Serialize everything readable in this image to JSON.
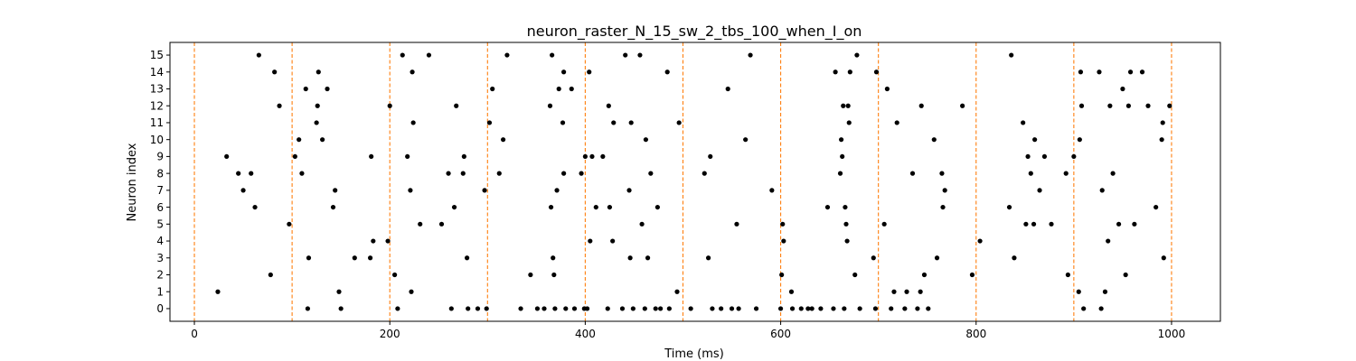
{
  "chart_data": {
    "type": "scatter",
    "title": "neuron_raster_N_15_sw_2_tbs_100_when_I_on",
    "xlabel": "Time (ms)",
    "ylabel": "Neuron index",
    "xlim": [
      -25,
      1050
    ],
    "ylim": [
      -0.75,
      15.75
    ],
    "xticks": [
      0,
      200,
      400,
      600,
      800,
      1000
    ],
    "yticks": [
      0,
      1,
      2,
      3,
      4,
      5,
      6,
      7,
      8,
      9,
      10,
      11,
      12,
      13,
      14,
      15
    ],
    "grid": false,
    "legend": "none",
    "marker_color": "#000000",
    "vline_color": "#ff7f0e",
    "vlines": [
      0,
      100,
      200,
      300,
      400,
      500,
      600,
      700,
      800,
      900,
      1000
    ],
    "series": [
      {
        "points": [
          [
            24,
            1
          ],
          [
            33,
            9
          ],
          [
            45,
            8
          ],
          [
            50,
            7
          ],
          [
            58,
            8
          ],
          [
            62,
            6
          ],
          [
            66,
            15
          ],
          [
            78,
            2
          ],
          [
            82,
            14
          ],
          [
            87,
            12
          ],
          [
            97,
            5
          ],
          [
            103,
            9
          ],
          [
            107,
            10
          ],
          [
            110,
            8
          ],
          [
            114,
            13
          ],
          [
            116,
            0
          ],
          [
            117,
            3
          ],
          [
            125,
            11
          ],
          [
            126,
            12
          ],
          [
            127,
            14
          ],
          [
            131,
            10
          ],
          [
            136,
            13
          ],
          [
            142,
            6
          ],
          [
            144,
            7
          ],
          [
            148,
            1
          ],
          [
            150,
            0
          ],
          [
            164,
            3
          ],
          [
            180,
            3
          ],
          [
            181,
            9
          ],
          [
            183,
            4
          ],
          [
            198,
            4
          ],
          [
            200,
            12
          ],
          [
            205,
            2
          ],
          [
            208,
            0
          ],
          [
            213,
            15
          ],
          [
            218,
            9
          ],
          [
            221,
            7
          ],
          [
            222,
            1
          ],
          [
            223,
            14
          ],
          [
            224,
            11
          ],
          [
            231,
            5
          ],
          [
            240,
            15
          ],
          [
            253,
            5
          ],
          [
            260,
            8
          ],
          [
            263,
            0
          ],
          [
            266,
            6
          ],
          [
            268,
            12
          ],
          [
            275,
            8
          ],
          [
            276,
            9
          ],
          [
            279,
            3
          ],
          [
            280,
            0
          ],
          [
            290,
            0
          ],
          [
            297,
            7
          ],
          [
            299,
            0
          ],
          [
            302,
            11
          ],
          [
            305,
            13
          ],
          [
            312,
            8
          ],
          [
            316,
            10
          ],
          [
            320,
            15
          ],
          [
            334,
            0
          ],
          [
            344,
            2
          ],
          [
            351,
            0
          ],
          [
            358,
            0
          ],
          [
            364,
            12
          ],
          [
            365,
            6
          ],
          [
            366,
            15
          ],
          [
            367,
            3
          ],
          [
            368,
            2
          ],
          [
            369,
            0
          ],
          [
            371,
            7
          ],
          [
            373,
            13
          ],
          [
            377,
            11
          ],
          [
            378,
            14
          ],
          [
            378,
            8
          ],
          [
            380,
            0
          ],
          [
            386,
            13
          ],
          [
            389,
            0
          ],
          [
            396,
            8
          ],
          [
            399,
            0
          ],
          [
            400,
            9
          ],
          [
            402,
            0
          ],
          [
            404,
            14
          ],
          [
            405,
            4
          ],
          [
            407,
            9
          ],
          [
            411,
            6
          ],
          [
            418,
            9
          ],
          [
            423,
            0
          ],
          [
            424,
            12
          ],
          [
            425,
            6
          ],
          [
            428,
            4
          ],
          [
            429,
            11
          ],
          [
            438,
            0
          ],
          [
            441,
            15
          ],
          [
            445,
            7
          ],
          [
            446,
            3
          ],
          [
            447,
            11
          ],
          [
            449,
            0
          ],
          [
            456,
            15
          ],
          [
            458,
            5
          ],
          [
            461,
            0
          ],
          [
            462,
            10
          ],
          [
            464,
            3
          ],
          [
            467,
            8
          ],
          [
            472,
            0
          ],
          [
            474,
            6
          ],
          [
            477,
            0
          ],
          [
            484,
            14
          ],
          [
            486,
            0
          ],
          [
            494,
            1
          ],
          [
            496,
            11
          ],
          [
            508,
            0
          ],
          [
            522,
            8
          ],
          [
            526,
            3
          ],
          [
            528,
            9
          ],
          [
            530,
            0
          ],
          [
            539,
            0
          ],
          [
            546,
            13
          ],
          [
            550,
            0
          ],
          [
            555,
            5
          ],
          [
            557,
            0
          ],
          [
            564,
            10
          ],
          [
            569,
            15
          ],
          [
            575,
            0
          ],
          [
            591,
            7
          ],
          [
            600,
            0
          ],
          [
            601,
            2
          ],
          [
            602,
            5
          ],
          [
            603,
            4
          ],
          [
            611,
            1
          ],
          [
            612,
            0
          ],
          [
            621,
            0
          ],
          [
            628,
            0
          ],
          [
            632,
            0
          ],
          [
            641,
            0
          ],
          [
            648,
            6
          ],
          [
            654,
            0
          ],
          [
            656,
            14
          ],
          [
            661,
            8
          ],
          [
            662,
            10
          ],
          [
            663,
            9
          ],
          [
            664,
            12
          ],
          [
            665,
            0
          ],
          [
            666,
            6
          ],
          [
            667,
            5
          ],
          [
            668,
            4
          ],
          [
            669,
            12
          ],
          [
            670,
            11
          ],
          [
            671,
            14
          ],
          [
            676,
            2
          ],
          [
            678,
            15
          ],
          [
            681,
            0
          ],
          [
            695,
            3
          ],
          [
            697,
            0
          ],
          [
            698,
            14
          ],
          [
            706,
            5
          ],
          [
            709,
            13
          ],
          [
            713,
            0
          ],
          [
            716,
            1
          ],
          [
            719,
            11
          ],
          [
            727,
            0
          ],
          [
            729,
            1
          ],
          [
            735,
            8
          ],
          [
            740,
            0
          ],
          [
            743,
            1
          ],
          [
            744,
            12
          ],
          [
            747,
            2
          ],
          [
            751,
            0
          ],
          [
            757,
            10
          ],
          [
            760,
            3
          ],
          [
            765,
            8
          ],
          [
            766,
            6
          ],
          [
            768,
            7
          ],
          [
            786,
            12
          ],
          [
            796,
            2
          ],
          [
            804,
            4
          ],
          [
            834,
            6
          ],
          [
            836,
            15
          ],
          [
            839,
            3
          ],
          [
            848,
            11
          ],
          [
            851,
            5
          ],
          [
            853,
            9
          ],
          [
            856,
            8
          ],
          [
            859,
            5
          ],
          [
            860,
            10
          ],
          [
            865,
            7
          ],
          [
            870,
            9
          ],
          [
            877,
            5
          ],
          [
            892,
            8
          ],
          [
            894,
            2
          ],
          [
            900,
            9
          ],
          [
            905,
            1
          ],
          [
            906,
            10
          ],
          [
            907,
            14
          ],
          [
            908,
            12
          ],
          [
            910,
            0
          ],
          [
            926,
            14
          ],
          [
            928,
            0
          ],
          [
            929,
            7
          ],
          [
            932,
            1
          ],
          [
            935,
            4
          ],
          [
            937,
            12
          ],
          [
            940,
            8
          ],
          [
            946,
            5
          ],
          [
            950,
            13
          ],
          [
            953,
            2
          ],
          [
            956,
            12
          ],
          [
            958,
            14
          ],
          [
            962,
            5
          ],
          [
            970,
            14
          ],
          [
            976,
            12
          ],
          [
            984,
            6
          ],
          [
            990,
            10
          ],
          [
            991,
            11
          ],
          [
            992,
            3
          ],
          [
            998,
            12
          ]
        ]
      }
    ]
  }
}
